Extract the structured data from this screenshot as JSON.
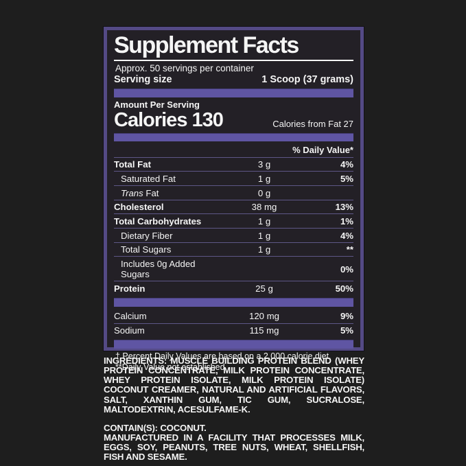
{
  "colors": {
    "page_bg": "#1e1e1e",
    "panel_bg": "#232026",
    "border_purple": "#544a85",
    "accent_purple": "#5f55a3",
    "separator": "#5e5787",
    "text_white": "#f5f5f5"
  },
  "label": {
    "title": "Supplement Facts",
    "servings_per_container": "Approx. 50 servings per container",
    "serving_size_label": "Serving size",
    "serving_size_value": "1 Scoop (37 grams)",
    "amount_per_serving": "Amount Per Serving",
    "calories_line": "Calories 130",
    "calories_from_fat": "Calories from Fat 27",
    "daily_value_header": "% Daily Value*",
    "main_rows": [
      {
        "name": "Total Fat",
        "amount": "3 g",
        "dv": "4%",
        "bold": true
      },
      {
        "name": "Saturated Fat",
        "amount": "1 g",
        "dv": "5%",
        "indent": true
      },
      {
        "name": "Trans Fat",
        "amount": "0 g",
        "dv": "",
        "indent": true,
        "italic_first": true
      },
      {
        "name": "Cholesterol",
        "amount": "38 mg",
        "dv": "13%",
        "bold": true
      },
      {
        "name": "Total Carbohydrates",
        "amount": "1 g",
        "dv": "1%",
        "bold": true
      },
      {
        "name": "Dietary Fiber",
        "amount": "1 g",
        "dv": "4%",
        "indent": true
      },
      {
        "name": "Total Sugars",
        "amount": "1 g",
        "dv": "**",
        "indent": true
      },
      {
        "name": "Includes 0g Added Sugars",
        "amount": "",
        "dv": "0%",
        "indent": true
      },
      {
        "name": "Protein",
        "amount": "25 g",
        "dv": "50%",
        "bold": true
      }
    ],
    "mineral_rows": [
      {
        "name": "Calcium",
        "amount": "120 mg",
        "dv": "9%"
      },
      {
        "name": "Sodium",
        "amount": "115 mg",
        "dv": "5%"
      }
    ],
    "footnotes": [
      "† Percent Daily Values are based on a 2,000 calorie diet.",
      "**Daily Value not established."
    ]
  },
  "ingredients": {
    "lead": "INGREDIENTS:",
    "text": " MUSCLE BUILDING PROTEIN BLEND (WHEY PROTEIN CONCENTRATE, MILK PROTEIN CONCENTRATE, WHEY PROTEIN ISOLATE, MILK PROTEIN ISOLATE) COCONUT CREAMER, NATURAL AND ARTIFICIAL FLAVORS, SALT, XANTHIN GUM, TIC GUM, SUCRALOSE, MALTODEXTRIN, ACESULFAME-K.",
    "contains": "CONTAIN(S): COCONUT.",
    "manufactured": "MANUFACTURED IN A FACILITY THAT PROCESSES MILK, EGGS, SOY, PEANUTS, TREE NUTS, WHEAT, SHELLFISH, FISH AND SESAME."
  }
}
